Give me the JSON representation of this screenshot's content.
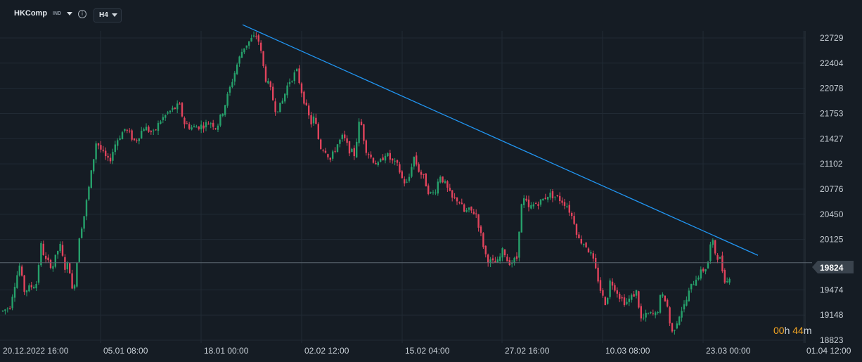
{
  "header": {
    "symbol": "HKComp",
    "type": "IND",
    "info_icon": "info-icon",
    "timeframe": "H4"
  },
  "price_label": "19824",
  "countdown": {
    "hours": "00",
    "h_unit": "h",
    "minutes": "44",
    "m_unit": "m"
  },
  "colors": {
    "up": "#26a06b",
    "down": "#e0435c",
    "trendline": "#2196f3",
    "background": "#151c24",
    "grid": "#212a34"
  },
  "chart_data": {
    "type": "candlestick",
    "y_ticks": [
      "22729",
      "22404",
      "22078",
      "21753",
      "21427",
      "21102",
      "20776",
      "20450",
      "20125",
      "19474",
      "19148",
      "18823"
    ],
    "x_ticks": [
      "20.12.2022  16:00",
      "05.01  08:00",
      "18.01  00:00",
      "02.02  12:00",
      "15.02  04:00",
      "27.02  16:00",
      "10.03  08:00",
      "23.03  00:00",
      "01.04  12:00"
    ],
    "ylim": [
      18780,
      22950
    ],
    "current_price": 19824,
    "grid": true,
    "path": [
      [
        0,
        19070
      ],
      [
        4,
        19200
      ],
      [
        14,
        19260
      ],
      [
        20,
        19520
      ],
      [
        28,
        19790
      ],
      [
        34,
        19460
      ],
      [
        42,
        19500
      ],
      [
        52,
        19560
      ],
      [
        58,
        20060
      ],
      [
        65,
        19850
      ],
      [
        75,
        19780
      ],
      [
        85,
        20060
      ],
      [
        92,
        19760
      ],
      [
        98,
        19820
      ],
      [
        103,
        19430
      ],
      [
        108,
        19670
      ],
      [
        112,
        20140
      ],
      [
        120,
        20450
      ],
      [
        128,
        20880
      ],
      [
        137,
        21400
      ],
      [
        146,
        21240
      ],
      [
        155,
        21120
      ],
      [
        165,
        21390
      ],
      [
        178,
        21560
      ],
      [
        192,
        21390
      ],
      [
        205,
        21580
      ],
      [
        218,
        21490
      ],
      [
        228,
        21660
      ],
      [
        240,
        21770
      ],
      [
        255,
        21860
      ],
      [
        262,
        21630
      ],
      [
        272,
        21570
      ],
      [
        285,
        21590
      ],
      [
        300,
        21640
      ],
      [
        308,
        21570
      ],
      [
        318,
        21810
      ],
      [
        328,
        22110
      ],
      [
        338,
        22410
      ],
      [
        346,
        22600
      ],
      [
        356,
        22700
      ],
      [
        366,
        22770
      ],
      [
        372,
        22500
      ],
      [
        377,
        22220
      ],
      [
        384,
        22080
      ],
      [
        392,
        21800
      ],
      [
        400,
        21860
      ],
      [
        410,
        22150
      ],
      [
        422,
        22300
      ],
      [
        430,
        22000
      ],
      [
        437,
        21780
      ],
      [
        442,
        21620
      ],
      [
        447,
        21710
      ],
      [
        455,
        21320
      ],
      [
        462,
        21300
      ],
      [
        470,
        21150
      ],
      [
        478,
        21330
      ],
      [
        488,
        21460
      ],
      [
        496,
        21290
      ],
      [
        504,
        21220
      ],
      [
        512,
        21700
      ],
      [
        520,
        21300
      ],
      [
        528,
        21180
      ],
      [
        538,
        21080
      ],
      [
        548,
        21240
      ],
      [
        558,
        21130
      ],
      [
        566,
        21070
      ],
      [
        573,
        20880
      ],
      [
        580,
        20840
      ],
      [
        588,
        21210
      ],
      [
        595,
        21030
      ],
      [
        603,
        20910
      ],
      [
        611,
        20710
      ],
      [
        618,
        20730
      ],
      [
        626,
        20960
      ],
      [
        635,
        20800
      ],
      [
        643,
        20650
      ],
      [
        652,
        20640
      ],
      [
        660,
        20480
      ],
      [
        668,
        20500
      ],
      [
        677,
        20460
      ],
      [
        685,
        20140
      ],
      [
        692,
        19880
      ],
      [
        700,
        19820
      ],
      [
        708,
        19830
      ],
      [
        716,
        20000
      ],
      [
        722,
        19840
      ],
      [
        728,
        19830
      ],
      [
        736,
        19890
      ],
      [
        740,
        20520
      ],
      [
        746,
        20650
      ],
      [
        752,
        20520
      ],
      [
        760,
        20580
      ],
      [
        770,
        20620
      ],
      [
        780,
        20710
      ],
      [
        790,
        20680
      ],
      [
        800,
        20620
      ],
      [
        807,
        20560
      ],
      [
        812,
        20450
      ],
      [
        818,
        20330
      ],
      [
        822,
        20130
      ],
      [
        832,
        20070
      ],
      [
        842,
        19900
      ],
      [
        850,
        19630
      ],
      [
        856,
        19400
      ],
      [
        862,
        19290
      ],
      [
        868,
        19600
      ],
      [
        875,
        19500
      ],
      [
        882,
        19380
      ],
      [
        890,
        19300
      ],
      [
        898,
        19380
      ],
      [
        905,
        19450
      ],
      [
        912,
        19080
      ],
      [
        920,
        19150
      ],
      [
        926,
        19160
      ],
      [
        934,
        19150
      ],
      [
        940,
        19410
      ],
      [
        948,
        19330
      ],
      [
        955,
        18900
      ],
      [
        962,
        19050
      ],
      [
        968,
        19200
      ],
      [
        974,
        19280
      ],
      [
        982,
        19500
      ],
      [
        990,
        19630
      ],
      [
        998,
        19710
      ],
      [
        1006,
        19780
      ],
      [
        1012,
        20140
      ],
      [
        1018,
        19930
      ],
      [
        1024,
        19870
      ],
      [
        1030,
        19620
      ],
      [
        1036,
        19570
      ],
      [
        1040,
        19780
      ]
    ],
    "trendline": [
      {
        "x": 345,
        "price": 22900
      },
      {
        "x": 1078,
        "price": 19920
      }
    ]
  }
}
